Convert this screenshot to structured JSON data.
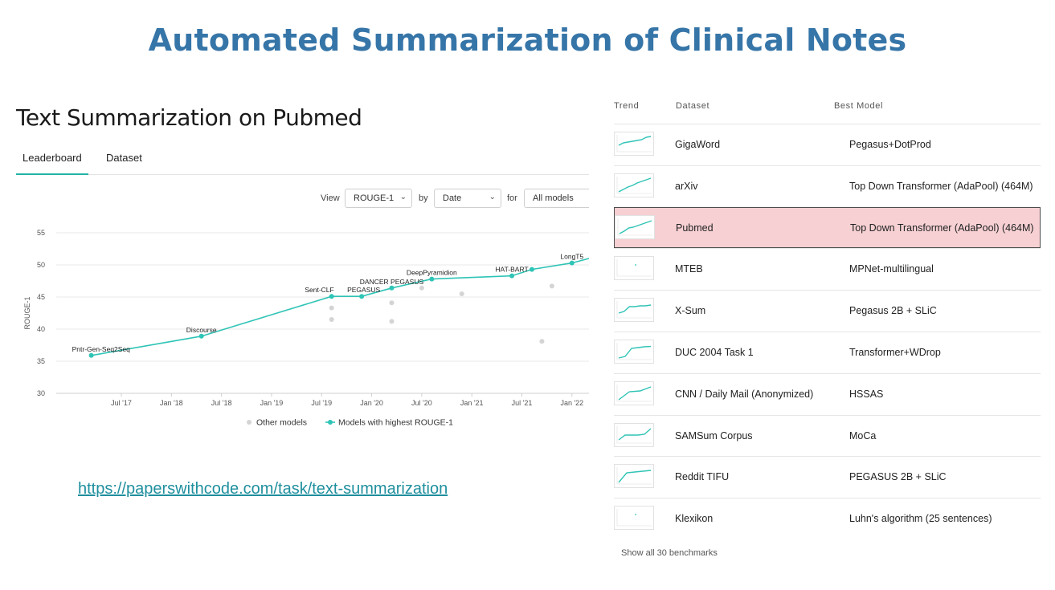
{
  "slide": {
    "title": "Automated Summarization of Clinical Notes"
  },
  "task": {
    "title": "Text Summarization on Pubmed"
  },
  "tabs": [
    {
      "label": "Leaderboard",
      "active": true
    },
    {
      "label": "Dataset",
      "active": false
    }
  ],
  "controls": {
    "view_label": "View",
    "metric": "ROUGE-1",
    "by_label": "by",
    "order": "Date",
    "for_label": "for",
    "filter": "All models"
  },
  "chart_data": {
    "type": "line",
    "ylabel": "ROUGE-1",
    "ylim": [
      30,
      55
    ],
    "yticks": [
      "55",
      "50",
      "45",
      "40",
      "35",
      "30"
    ],
    "xticks": [
      "Jul '17",
      "Jan '18",
      "Jul '18",
      "Jan '19",
      "Jul '19",
      "Jan '20",
      "Jul '20",
      "Jan '21",
      "Jul '21",
      "Jan '22"
    ],
    "xlim": [
      2016.85,
      2022.17
    ],
    "series": [
      {
        "name": "Models with highest ROUGE-1",
        "color": "#2ec4b6",
        "points": [
          {
            "x": 2017.2,
            "y": 35.9,
            "label": "Pntr-Gen-Seq2Seq"
          },
          {
            "x": 2018.3,
            "y": 38.9,
            "label": "Discourse"
          },
          {
            "x": 2019.6,
            "y": 45.1,
            "label": "Sent-CLF"
          },
          {
            "x": 2019.9,
            "y": 45.1,
            "label": "PEGASUS"
          },
          {
            "x": 2020.2,
            "y": 46.4,
            "label": "DANCER PEGASUS"
          },
          {
            "x": 2020.6,
            "y": 47.8,
            "label": "DeepPyramidion"
          },
          {
            "x": 2021.4,
            "y": 48.3,
            "label": "HAT-BART"
          },
          {
            "x": 2021.6,
            "y": 49.3,
            "label": ""
          },
          {
            "x": 2022.0,
            "y": 50.3,
            "label": "LongT5"
          }
        ]
      },
      {
        "name": "Other models",
        "color": "#d4d4d4",
        "points": [
          {
            "x": 2019.6,
            "y": 43.3
          },
          {
            "x": 2019.6,
            "y": 41.5
          },
          {
            "x": 2020.2,
            "y": 44.1
          },
          {
            "x": 2020.2,
            "y": 41.2
          },
          {
            "x": 2020.5,
            "y": 46.4
          },
          {
            "x": 2020.9,
            "y": 45.5
          },
          {
            "x": 2021.7,
            "y": 38.1
          },
          {
            "x": 2021.8,
            "y": 46.7
          }
        ]
      }
    ],
    "legend": [
      {
        "label": "Other models",
        "color": "#d4d4d4"
      },
      {
        "label": "Models with highest ROUGE-1",
        "color": "#2ec4b6"
      }
    ]
  },
  "link": {
    "text": "https://paperswithcode.com/task/text-summarization"
  },
  "benchmarks": {
    "headers": {
      "trend": "Trend",
      "dataset": "Dataset",
      "best_model": "Best Model"
    },
    "rows": [
      {
        "dataset": "GigaWord",
        "model": "Pegasus+DotProd",
        "trend": [
          0.4,
          0.55,
          0.6,
          0.65,
          0.7,
          0.75,
          0.9,
          0.95
        ]
      },
      {
        "dataset": "arXiv",
        "model": "Top Down Transformer (AdaPool) (464M)",
        "trend": [
          0.1,
          0.25,
          0.4,
          0.5,
          0.65,
          0.75,
          0.85,
          0.95
        ]
      },
      {
        "dataset": "Pubmed",
        "model": "Top Down Transformer (AdaPool) (464M)",
        "trend": [
          0.1,
          0.25,
          0.45,
          0.5,
          0.6,
          0.7,
          0.8,
          0.9
        ],
        "highlight": true
      },
      {
        "dataset": "MTEB",
        "model": "MPNet-multilingual",
        "trend": [
          0.7
        ]
      },
      {
        "dataset": "X-Sum",
        "model": "Pegasus 2B + SLiC",
        "trend": [
          0.3,
          0.4,
          0.7,
          0.7,
          0.75,
          0.75,
          0.8
        ]
      },
      {
        "dataset": "DUC 2004 Task 1",
        "model": "Transformer+WDrop",
        "trend": [
          0.1,
          0.2,
          0.7,
          0.75,
          0.8,
          0.82
        ]
      },
      {
        "dataset": "CNN / Daily Mail (Anonymized)",
        "model": "HSSAS",
        "trend": [
          0.1,
          0.6,
          0.65,
          0.9
        ]
      },
      {
        "dataset": "SAMSum Corpus",
        "model": "MoCa",
        "trend": [
          0.2,
          0.5,
          0.5,
          0.5,
          0.55,
          0.9
        ]
      },
      {
        "dataset": "Reddit TIFU",
        "model": "PEGASUS 2B + SLiC",
        "trend": [
          0.1,
          0.7,
          0.75,
          0.8,
          0.85
        ]
      },
      {
        "dataset": "Klexikon",
        "model": "Luhn's algorithm (25 sentences)",
        "trend": [
          0.7
        ]
      }
    ],
    "show_all": "Show all 30 benchmarks"
  }
}
